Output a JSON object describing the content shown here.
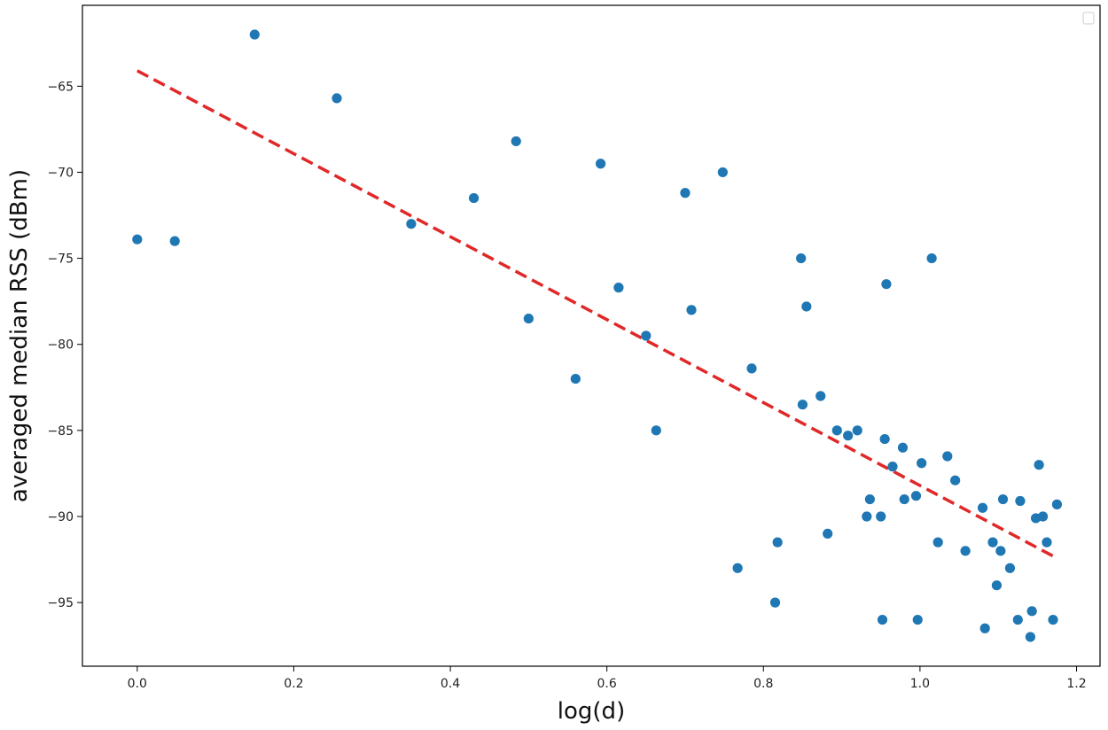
{
  "chart_data": {
    "type": "scatter",
    "xlabel": "log(d)",
    "ylabel": "averaged median RSS (dBm)",
    "xlim": [
      -0.07,
      1.23
    ],
    "ylim": [
      -98.7,
      -60.3
    ],
    "xticks": [
      0.0,
      0.2,
      0.4,
      0.6,
      0.8,
      1.0,
      1.2
    ],
    "xtick_labels": [
      "0.0",
      "0.2",
      "0.4",
      "0.6",
      "0.8",
      "1.0",
      "1.2"
    ],
    "yticks": [
      -95,
      -90,
      -85,
      -80,
      -75,
      -70,
      -65
    ],
    "ytick_labels": [
      "−95",
      "−90",
      "−85",
      "−80",
      "−75",
      "−70",
      "−65"
    ],
    "grid": false,
    "legend": "top-right (empty)",
    "colors": {
      "points": "#1f77b4",
      "fit_line": "#e02828"
    },
    "series": [
      {
        "kind": "scatter",
        "points": [
          [
            0.0,
            -73.9
          ],
          [
            0.048,
            -74.0
          ],
          [
            0.15,
            -62.0
          ],
          [
            0.255,
            -65.7
          ],
          [
            0.35,
            -73.0
          ],
          [
            0.43,
            -71.5
          ],
          [
            0.484,
            -68.2
          ],
          [
            0.5,
            -78.5
          ],
          [
            0.56,
            -82.0
          ],
          [
            0.592,
            -69.5
          ],
          [
            0.615,
            -76.7
          ],
          [
            0.65,
            -79.5
          ],
          [
            0.663,
            -85.0
          ],
          [
            0.7,
            -71.2
          ],
          [
            0.708,
            -78.0
          ],
          [
            0.748,
            -70.0
          ],
          [
            0.767,
            -93.0
          ],
          [
            0.785,
            -81.4
          ],
          [
            0.815,
            -95.0
          ],
          [
            0.818,
            -91.5
          ],
          [
            0.848,
            -75.0
          ],
          [
            0.85,
            -83.5
          ],
          [
            0.855,
            -77.8
          ],
          [
            0.873,
            -83.0
          ],
          [
            0.882,
            -91.0
          ],
          [
            0.894,
            -85.0
          ],
          [
            0.908,
            -85.3
          ],
          [
            0.92,
            -85.0
          ],
          [
            0.932,
            -90.0
          ],
          [
            0.936,
            -89.0
          ],
          [
            0.95,
            -90.0
          ],
          [
            0.952,
            -96.0
          ],
          [
            0.955,
            -85.5
          ],
          [
            0.957,
            -76.5
          ],
          [
            0.965,
            -87.1
          ],
          [
            0.978,
            -86.0
          ],
          [
            0.98,
            -89.0
          ],
          [
            0.995,
            -88.8
          ],
          [
            0.997,
            -96.0
          ],
          [
            1.002,
            -86.9
          ],
          [
            1.015,
            -75.0
          ],
          [
            1.023,
            -91.5
          ],
          [
            1.035,
            -86.5
          ],
          [
            1.045,
            -87.9
          ],
          [
            1.058,
            -92.0
          ],
          [
            1.08,
            -89.5
          ],
          [
            1.083,
            -96.5
          ],
          [
            1.093,
            -91.5
          ],
          [
            1.098,
            -94.0
          ],
          [
            1.103,
            -92.0
          ],
          [
            1.106,
            -89.0
          ],
          [
            1.115,
            -93.0
          ],
          [
            1.125,
            -96.0
          ],
          [
            1.128,
            -89.1
          ],
          [
            1.143,
            -95.5
          ],
          [
            1.141,
            -97.0
          ],
          [
            1.148,
            -90.1
          ],
          [
            1.152,
            -87.0
          ],
          [
            1.157,
            -90.0
          ],
          [
            1.162,
            -91.5
          ],
          [
            1.17,
            -96.0
          ],
          [
            1.175,
            -89.3
          ]
        ]
      },
      {
        "kind": "line",
        "style": "dashed",
        "points": [
          [
            0.0,
            -64.1
          ],
          [
            1.17,
            -92.3
          ]
        ]
      }
    ]
  }
}
